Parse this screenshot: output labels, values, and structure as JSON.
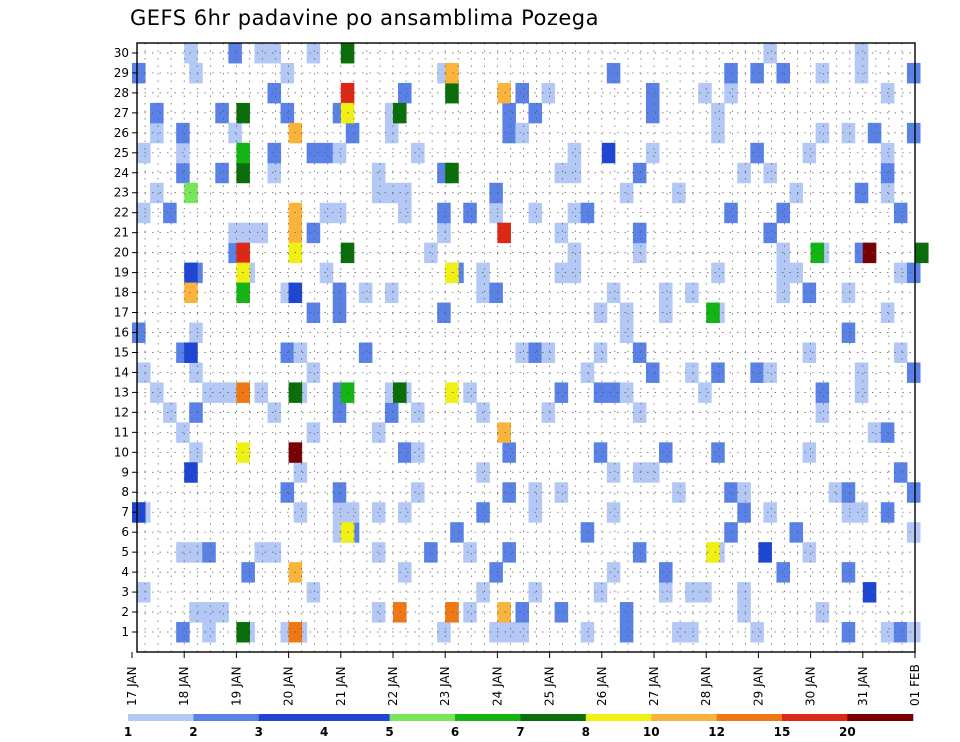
{
  "chart_data": {
    "type": "heatmap",
    "title": "GEFS 6hr padavine po ansamblima Pozega",
    "y_ticks": [
      "1",
      "2",
      "3",
      "4",
      "5",
      "6",
      "7",
      "8",
      "9",
      "10",
      "11",
      "12",
      "13",
      "14",
      "15",
      "16",
      "17",
      "18",
      "19",
      "20",
      "21",
      "22",
      "23",
      "24",
      "25",
      "26",
      "27",
      "28",
      "29",
      "30"
    ],
    "x_ticks": [
      "17 JAN",
      "18 JAN",
      "19 JAN",
      "20 JAN",
      "21 JAN",
      "22 JAN",
      "23 JAN",
      "24 JAN",
      "25 JAN",
      "26 JAN",
      "27 JAN",
      "28 JAN",
      "29 JAN",
      "30 JAN",
      "31 JAN",
      "01 FEB"
    ],
    "grid": "dotted",
    "colorbar": {
      "labels": [
        "1",
        "2",
        "3",
        "4",
        "5",
        "6",
        "7",
        "8",
        "10",
        "12",
        "15",
        "20"
      ],
      "colors": [
        "#b4c8f5",
        "#5a82e6",
        "#1e46d2",
        "#1e46d2",
        "#78e65a",
        "#14b414",
        "#0a6e0a",
        "#f0f014",
        "#fab43c",
        "#f07814",
        "#dc2814",
        "#780000"
      ]
    },
    "cells": [
      {
        "x": "17 JAN",
        "y": "29",
        "level": 2
      },
      {
        "x": "17 JAN",
        "y": "7",
        "level": 3
      },
      {
        "x": "17 JAN",
        "y": "16",
        "level": 2
      },
      {
        "x": "18 JAN",
        "y": "30",
        "level": 1
      },
      {
        "x": "18 JAN",
        "y": "19",
        "level": 3
      },
      {
        "x": "18 JAN",
        "y": "18",
        "level": 10
      },
      {
        "x": "18 JAN",
        "y": "9",
        "level": 3
      },
      {
        "x": "18 JAN",
        "y": "23",
        "level": 5
      },
      {
        "x": "18 JAN",
        "y": "15",
        "level": 3
      },
      {
        "x": "19 JAN",
        "y": "27",
        "level": 7
      },
      {
        "x": "19 JAN",
        "y": "24",
        "level": 7
      },
      {
        "x": "19 JAN",
        "y": "20",
        "level": 15
      },
      {
        "x": "19 JAN",
        "y": "13",
        "level": 12
      },
      {
        "x": "19 JAN",
        "y": "10",
        "level": 8
      },
      {
        "x": "19 JAN",
        "y": "1",
        "level": 7
      },
      {
        "x": "19 JAN",
        "y": "19",
        "level": 8
      },
      {
        "x": "19 JAN",
        "y": "18",
        "level": 6
      },
      {
        "x": "19 JAN",
        "y": "25",
        "level": 6
      },
      {
        "x": "20 JAN",
        "y": "26",
        "level": 10
      },
      {
        "x": "20 JAN",
        "y": "22",
        "level": 10
      },
      {
        "x": "20 JAN",
        "y": "21",
        "level": 10
      },
      {
        "x": "20 JAN",
        "y": "20",
        "level": 8
      },
      {
        "x": "20 JAN",
        "y": "13",
        "level": 7
      },
      {
        "x": "20 JAN",
        "y": "10",
        "level": 20
      },
      {
        "x": "20 JAN",
        "y": "4",
        "level": 10
      },
      {
        "x": "20 JAN",
        "y": "1",
        "level": 12
      },
      {
        "x": "20 JAN",
        "y": "18",
        "level": 4
      },
      {
        "x": "21 JAN",
        "y": "30",
        "level": 7
      },
      {
        "x": "21 JAN",
        "y": "20",
        "level": 7
      },
      {
        "x": "21 JAN",
        "y": "28",
        "level": 15
      },
      {
        "x": "21 JAN",
        "y": "27",
        "level": 8
      },
      {
        "x": "21 JAN",
        "y": "6",
        "level": 8
      },
      {
        "x": "21 JAN",
        "y": "13",
        "level": 6
      },
      {
        "x": "22 JAN",
        "y": "27",
        "level": 7
      },
      {
        "x": "22 JAN",
        "y": "2",
        "level": 12
      },
      {
        "x": "22 JAN",
        "y": "13",
        "level": 7
      },
      {
        "x": "23 JAN",
        "y": "28",
        "level": 7
      },
      {
        "x": "23 JAN",
        "y": "29",
        "level": 10
      },
      {
        "x": "23 JAN",
        "y": "19",
        "level": 8
      },
      {
        "x": "23 JAN",
        "y": "13",
        "level": 8
      },
      {
        "x": "23 JAN",
        "y": "2",
        "level": 12
      },
      {
        "x": "23 JAN",
        "y": "24",
        "level": 7
      },
      {
        "x": "24 JAN",
        "y": "28",
        "level": 10
      },
      {
        "x": "24 JAN",
        "y": "21",
        "level": 15
      },
      {
        "x": "24 JAN",
        "y": "11",
        "level": 10
      },
      {
        "x": "24 JAN",
        "y": "2",
        "level": 10
      },
      {
        "x": "26 JAN",
        "y": "25",
        "level": 3
      },
      {
        "x": "28 JAN",
        "y": "17",
        "level": 6
      },
      {
        "x": "28 JAN",
        "y": "5",
        "level": 8
      },
      {
        "x": "29 JAN",
        "y": "5",
        "level": 3
      },
      {
        "x": "30 JAN",
        "y": "20",
        "level": 6
      },
      {
        "x": "31 JAN",
        "y": "20",
        "level": 20
      },
      {
        "x": "31 JAN",
        "y": "3",
        "level": 3
      },
      {
        "x": "01 FEB",
        "y": "20",
        "level": 7
      }
    ]
  }
}
